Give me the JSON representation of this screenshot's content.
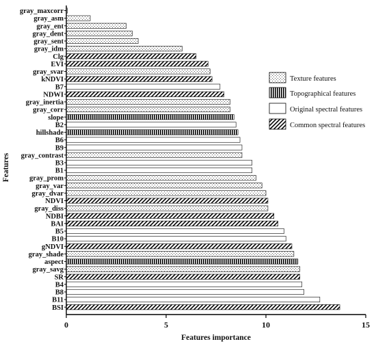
{
  "chart_data": {
    "type": "bar",
    "orientation": "horizontal",
    "xlabel": "Features importance",
    "ylabel": "Features",
    "xlim": [
      0,
      15
    ],
    "xticks": [
      "0",
      "5",
      "10",
      "15"
    ],
    "grid": false,
    "legend_placement": "right",
    "legend": [
      {
        "key": "texture",
        "label": "Texture features"
      },
      {
        "key": "topo",
        "label": "Topographical features"
      },
      {
        "key": "original",
        "label": "Original spectral features"
      },
      {
        "key": "common",
        "label": "Common spectral features"
      }
    ],
    "categories": [
      "gray_maxcorr",
      "gray_asm",
      "gray_ent",
      "gray_dent",
      "gray_sent",
      "gray_idm",
      "Clg",
      "EVI",
      "gray_svar",
      "kNDVI",
      "B7",
      "NDWI",
      "gray_inertia",
      "gray_corr",
      "slope",
      "B2",
      "hillshade",
      "B6",
      "B9",
      "gray_contrast",
      "B3",
      "B1",
      "gray_prom",
      "gray_var",
      "gray_dvar",
      "NDVI",
      "gray_diss",
      "NDBI",
      "BAI",
      "B5",
      "B10",
      "gNDVI",
      "gray_shade",
      "aspect",
      "gray_savg",
      "SR",
      "B4",
      "B8",
      "B11",
      "BSI"
    ],
    "values": [
      0.05,
      1.2,
      3.0,
      3.3,
      3.6,
      5.8,
      6.5,
      7.1,
      7.2,
      7.3,
      7.7,
      7.9,
      8.2,
      8.2,
      8.4,
      8.5,
      8.6,
      8.7,
      8.8,
      8.8,
      9.3,
      9.3,
      9.5,
      9.8,
      10.0,
      10.1,
      10.1,
      10.4,
      10.6,
      10.9,
      11.0,
      11.3,
      11.4,
      11.6,
      11.7,
      11.7,
      11.8,
      11.9,
      12.7,
      13.7
    ],
    "groups": [
      "texture",
      "texture",
      "texture",
      "texture",
      "texture",
      "texture",
      "common",
      "common",
      "texture",
      "common",
      "original",
      "common",
      "texture",
      "texture",
      "topo",
      "original",
      "topo",
      "original",
      "original",
      "texture",
      "original",
      "original",
      "texture",
      "texture",
      "texture",
      "common",
      "texture",
      "common",
      "common",
      "original",
      "original",
      "common",
      "texture",
      "topo",
      "texture",
      "common",
      "original",
      "original",
      "original",
      "common"
    ]
  }
}
